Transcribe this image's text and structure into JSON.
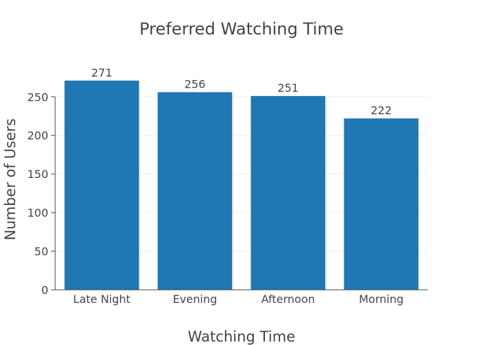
{
  "chart_data": {
    "type": "bar",
    "title": "Preferred Watching Time",
    "xlabel": "Watching Time",
    "ylabel": "Number of Users",
    "categories": [
      "Late Night",
      "Evening",
      "Afternoon",
      "Morning"
    ],
    "values": [
      271,
      256,
      251,
      222
    ],
    "data_labels": [
      "271",
      "256",
      "251",
      "222"
    ],
    "y_ticks": [
      0,
      50,
      100,
      150,
      200,
      250
    ],
    "ylim": [
      0,
      286
    ],
    "grid": true,
    "legend": "none",
    "colors": {
      "bar": "#1f77b4",
      "text": "#444444",
      "grid": "#eeeeee",
      "background": "#ffffff"
    }
  }
}
